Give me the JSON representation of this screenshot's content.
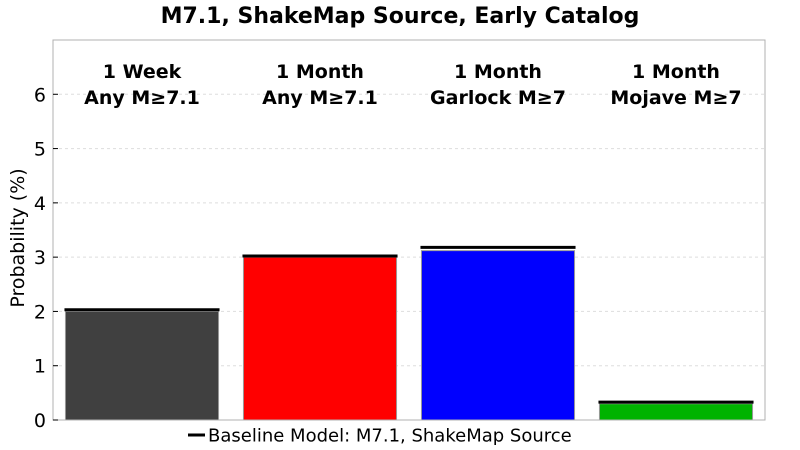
{
  "chart_data": {
    "type": "bar",
    "title": "M7.1, ShakeMap Source, Early Catalog",
    "xlabel": "",
    "ylabel": "Probability (%)",
    "ylim": [
      0,
      7
    ],
    "yticks": [
      0,
      1,
      2,
      3,
      4,
      5,
      6
    ],
    "grid": true,
    "categories": [
      [
        "1 Week",
        "Any M≥7.1"
      ],
      [
        "1 Month",
        "Any M≥7.1"
      ],
      [
        "1 Month",
        "Garlock M≥7"
      ],
      [
        "1 Month",
        "Mojave M≥7"
      ]
    ],
    "values": [
      2.0,
      3.0,
      3.12,
      0.3
    ],
    "bar_colors": [
      "#404040",
      "#ff0000",
      "#0000ff",
      "#00b300"
    ],
    "baseline": {
      "name": "Baseline Model: M7.1, ShakeMap Source",
      "values": [
        2.03,
        3.02,
        3.18,
        0.33
      ],
      "color": "#000000"
    },
    "legend_position": "bottom-center"
  }
}
